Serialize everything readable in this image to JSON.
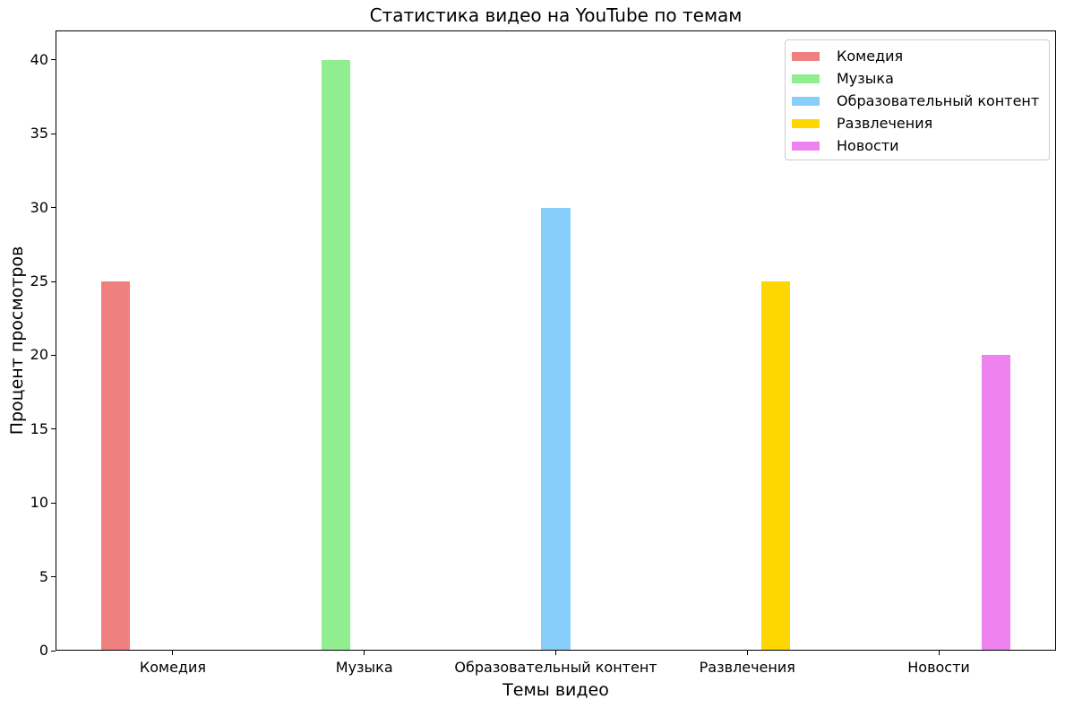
{
  "figure": {
    "background": "#ffffff",
    "text_color": "#000000",
    "spine_color": "#000000",
    "legend_border_color": "#cccccc"
  },
  "chart_data": {
    "type": "bar",
    "title": "Статистика видео на YouTube по темам",
    "xlabel": "Темы видео",
    "ylabel": "Процент просмотров",
    "categories": [
      "Комедия",
      "Музыка",
      "Образовательный контент",
      "Развлечения",
      "Новости"
    ],
    "series": [
      {
        "name": "Комедия",
        "color": "#F08080",
        "values": [
          25,
          0,
          0,
          0,
          0
        ]
      },
      {
        "name": "Музыка",
        "color": "#90EE90",
        "values": [
          0,
          40,
          0,
          0,
          0
        ]
      },
      {
        "name": "Образовательный контент",
        "color": "#87CEFA",
        "values": [
          0,
          0,
          30,
          0,
          0
        ]
      },
      {
        "name": "Развлечения",
        "color": "#FFD700",
        "values": [
          0,
          0,
          0,
          25,
          0
        ]
      },
      {
        "name": "Новости",
        "color": "#EE82EE",
        "values": [
          0,
          0,
          0,
          0,
          20
        ]
      }
    ],
    "bar_width": 0.15,
    "yticks": [
      0,
      5,
      10,
      15,
      20,
      25,
      30,
      35,
      40
    ],
    "ylim": [
      0,
      42
    ],
    "xlim": [
      -0.6125,
      4.6125
    ],
    "grid": false,
    "legend_position": "upper right"
  }
}
